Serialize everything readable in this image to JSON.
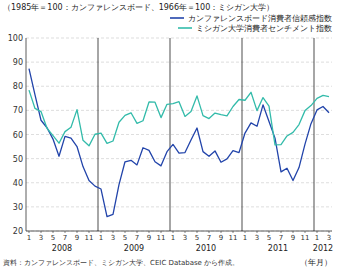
{
  "chart_data": {
    "type": "line",
    "subtitle": "（1985年＝100：カンファレンスボード、1966年＝100：ミシガン大学）",
    "source": "資料：カンファレンスボード、ミシガン大学、CEIC Database から作成。",
    "xlabel": "（年月）",
    "categories": [
      "1",
      null,
      "3",
      null,
      "5",
      null,
      "7",
      null,
      "9",
      null,
      "11",
      null,
      "1",
      null,
      "3",
      null,
      "5",
      null,
      "7",
      null,
      "9",
      null,
      "11",
      null,
      "1",
      null,
      "3",
      null,
      "5",
      null,
      "7",
      null,
      "9",
      null,
      "11",
      null,
      "1",
      null,
      "3",
      null,
      "5",
      null,
      "7",
      null,
      "9",
      null,
      "11",
      null,
      "1",
      null,
      "3"
    ],
    "x_groups": [
      {
        "label": "2008",
        "count": 12
      },
      {
        "label": "2009",
        "count": 12
      },
      {
        "label": "2010",
        "count": 12
      },
      {
        "label": "2011",
        "count": 12
      },
      {
        "label": "2012",
        "count": 3
      }
    ],
    "series": [
      {
        "name": "カンファレンスボード消費者信頼感指数",
        "color": "#2244aa",
        "values": [
          87.3,
          76.4,
          65.9,
          62.8,
          58.1,
          51.0,
          59.2,
          58.5,
          55.0,
          46.7,
          40.9,
          38.6,
          37.4,
          26.0,
          26.9,
          39.2,
          48.7,
          49.3,
          47.4,
          54.5,
          53.4,
          48.7,
          47.0,
          52.9,
          55.9,
          52.3,
          52.5,
          57.7,
          62.7,
          52.9,
          51.0,
          53.2,
          48.5,
          49.9,
          53.3,
          52.5,
          60.6,
          64.8,
          63.4,
          72.3,
          65.4,
          58.5,
          44.5,
          46.0,
          40.9,
          46.3,
          56.0,
          64.5,
          70.2,
          71.6,
          69.0
        ]
      },
      {
        "name": "ミシガン大学消費者センチメント指数",
        "color": "#33bbaa",
        "values": [
          78.4,
          70.8,
          69.5,
          62.6,
          59.5,
          56.4,
          61.2,
          63.0,
          70.3,
          57.6,
          55.3,
          60.1,
          60.6,
          56.3,
          57.3,
          65.1,
          67.9,
          69.0,
          64.6,
          65.7,
          73.5,
          73.4,
          67.0,
          72.5,
          72.8,
          73.6,
          67.5,
          69.5,
          76.0,
          67.8,
          66.6,
          68.9,
          68.2,
          67.7,
          71.6,
          74.5,
          74.2,
          77.5,
          69.9,
          75.3,
          71.8,
          55.7,
          55.8,
          59.4,
          60.9,
          64.1,
          69.9,
          72.0,
          75.0,
          76.2,
          75.7
        ]
      }
    ],
    "ylim": [
      20,
      100
    ],
    "yticks": [
      20,
      30,
      40,
      50,
      60,
      70,
      80,
      90,
      100
    ],
    "grid": true,
    "legend": "upper right"
  }
}
